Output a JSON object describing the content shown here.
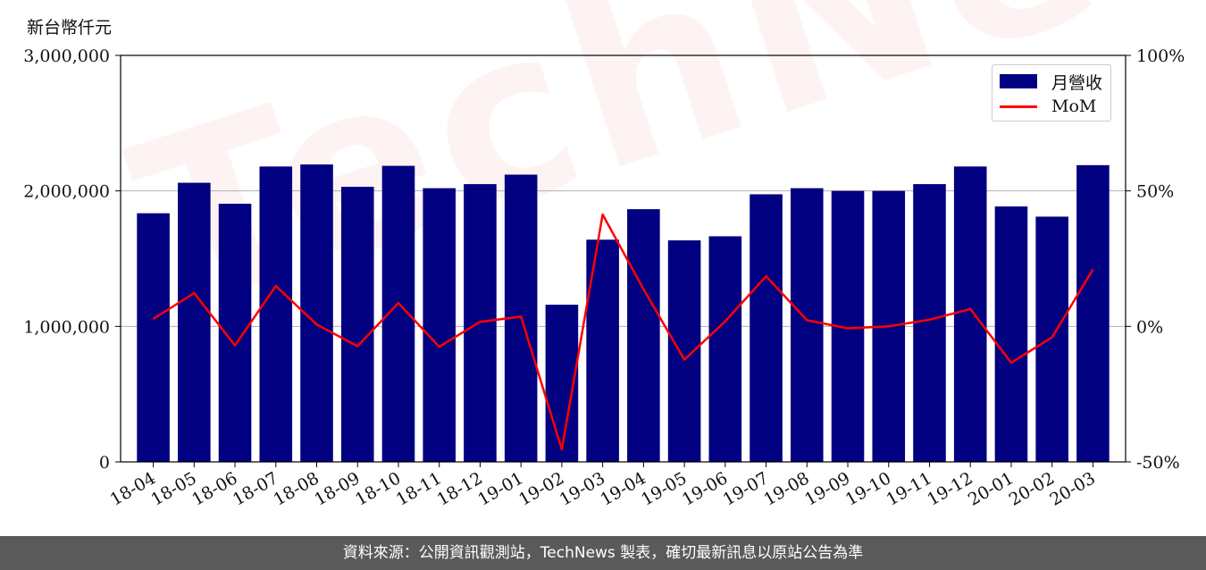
{
  "unit_label": "新台幣仟元",
  "footer_text": "資料來源：公開資訊觀測站，TechNews 製表，確切最新訊息以原站公告為準",
  "watermark_text": "TechNews",
  "colors": {
    "bar": "#000080",
    "line": "#ff0000",
    "grid": "#b0b0b0",
    "footer_bg": "#5a5a5a"
  },
  "chart_data": {
    "type": "bar",
    "categories": [
      "18-04",
      "18-05",
      "18-06",
      "18-07",
      "18-08",
      "18-09",
      "18-10",
      "18-11",
      "18-12",
      "19-01",
      "19-02",
      "19-03",
      "19-04",
      "19-05",
      "19-06",
      "19-07",
      "19-08",
      "19-09",
      "19-10",
      "19-11",
      "19-12",
      "20-01",
      "20-02",
      "20-03"
    ],
    "series": [
      {
        "name": "月營收",
        "axis": "left",
        "type": "bar",
        "values": [
          1835000,
          2060000,
          1905000,
          2180000,
          2195000,
          2030000,
          2185000,
          2020000,
          2050000,
          2120000,
          1160000,
          1640000,
          1865000,
          1635000,
          1665000,
          1975000,
          2020000,
          2000000,
          2000000,
          2050000,
          2180000,
          1885000,
          1810000,
          2190000
        ]
      },
      {
        "name": "MoM",
        "axis": "right",
        "type": "line",
        "values": [
          2.7,
          12.3,
          -7.0,
          14.9,
          0.7,
          -7.3,
          8.6,
          -7.5,
          1.7,
          3.6,
          -45.4,
          41.3,
          13.7,
          -12.3,
          1.9,
          18.5,
          2.3,
          -0.7,
          0.0,
          2.5,
          6.4,
          -13.4,
          -4.0,
          21.0
        ]
      }
    ],
    "y_left": {
      "ylim": [
        0,
        3000000
      ],
      "ticks": [
        "0",
        "1,000,000",
        "2,000,000",
        "3,000,000"
      ],
      "tick_values": [
        0,
        1000000,
        2000000,
        3000000
      ]
    },
    "y_right": {
      "ylim": [
        -50,
        100
      ],
      "ticks": [
        "-50%",
        "0%",
        "50%",
        "100%"
      ],
      "tick_values": [
        -50,
        0,
        50,
        100
      ]
    },
    "grid": true,
    "legend_placement": "top-right",
    "legend": [
      {
        "label": "月營收",
        "kind": "bar"
      },
      {
        "label": "MoM",
        "kind": "line"
      }
    ]
  }
}
